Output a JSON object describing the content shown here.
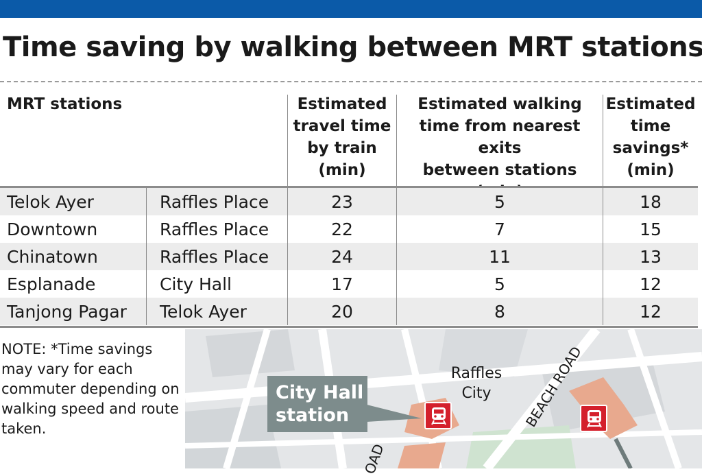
{
  "title": "Time saving by walking between MRT stations",
  "colors": {
    "top_bar": "#0b5aa8",
    "mrt_red": "#d4202c",
    "station_tag": "#7d8c8c",
    "station_area": "#e8a98e"
  },
  "table": {
    "headers": {
      "stations": "MRT stations",
      "train_time": [
        "Estimated",
        "travel time",
        "by train",
        "(min)"
      ],
      "walk_time": [
        "Estimated walking",
        "time from nearest exits",
        "between stations",
        "(min)"
      ],
      "savings": [
        "Estimated",
        "time",
        "savings*",
        "(min)"
      ]
    },
    "rows": [
      {
        "from": "Telok Ayer",
        "to": "Raffles Place",
        "train": "23",
        "walk": "5",
        "savings": "18"
      },
      {
        "from": "Downtown",
        "to": "Raffles Place",
        "train": "22",
        "walk": "7",
        "savings": "15"
      },
      {
        "from": "Chinatown",
        "to": "Raffles Place",
        "train": "24",
        "walk": "11",
        "savings": "13"
      },
      {
        "from": "Esplanade",
        "to": "City Hall",
        "train": "17",
        "walk": "5",
        "savings": "12"
      },
      {
        "from": "Tanjong Pagar",
        "to": "Telok Ayer",
        "train": "20",
        "walk": "8",
        "savings": "12"
      }
    ]
  },
  "note": "NOTE: *Time savings may vary for each commuter depending on walking speed and route taken.",
  "map": {
    "callout_line1": "City Hall",
    "callout_line2": "station",
    "raffles_city_line1": "Raffles",
    "raffles_city_line2": "City",
    "road_beach": "BEACH ROAD",
    "road_partial": "OAD",
    "icons": [
      "mrt-train-icon",
      "mrt-train-icon"
    ]
  }
}
